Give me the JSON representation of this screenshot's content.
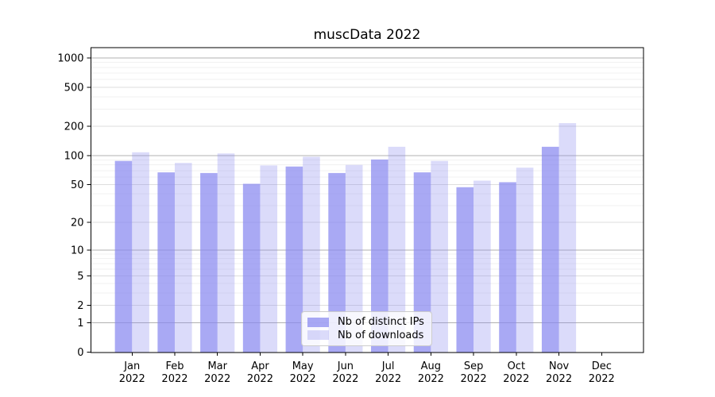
{
  "figure": {
    "background": "#ffffff"
  },
  "chart_data": {
    "type": "bar",
    "title": "muscData 2022",
    "categories": [
      "Jan",
      "Feb",
      "Mar",
      "Apr",
      "May",
      "Jun",
      "Jul",
      "Aug",
      "Sep",
      "Oct",
      "Nov",
      "Dec"
    ],
    "x_year_label": "2022",
    "series": [
      {
        "name": "Nb of distinct IPs",
        "color": "rgba(136,136,240,0.72)",
        "values": [
          88,
          67,
          66,
          51,
          77,
          66,
          91,
          67,
          47,
          53,
          123,
          0
        ]
      },
      {
        "name": "Nb of downloads",
        "color": "rgba(136,136,240,0.30)",
        "values": [
          108,
          84,
          105,
          79,
          97,
          80,
          123,
          88,
          55,
          75,
          215,
          0
        ]
      }
    ],
    "yscale": "log1p",
    "yticks": [
      0,
      1,
      2,
      5,
      10,
      20,
      50,
      100,
      200,
      500,
      1000
    ],
    "ylim": [
      0,
      1273
    ],
    "xlabel": "",
    "ylabel": "",
    "grid": true,
    "legend_position": "lower center",
    "colors": {
      "decade_gridline": "#b0b0b0",
      "major_gridline": "#dddddd",
      "minor_gridline": "#f1f1f1",
      "axis": "#000000",
      "text": "#000000"
    }
  }
}
